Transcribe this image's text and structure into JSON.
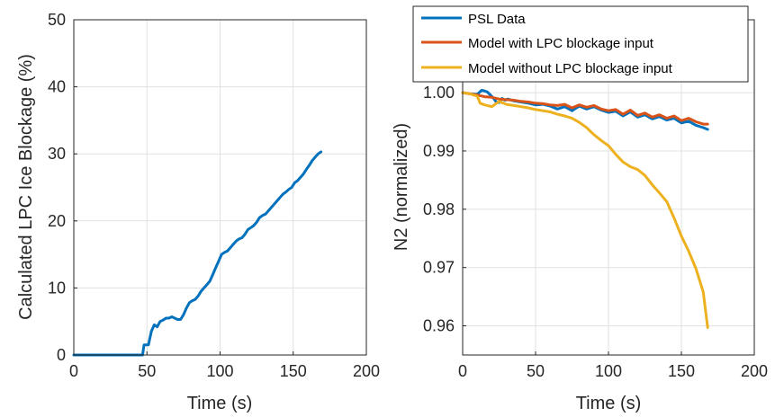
{
  "chart_data": [
    {
      "type": "line",
      "xlabel": "Time (s)",
      "ylabel": "Calculated LPC Ice Blockage (%)",
      "xlim": [
        0,
        200
      ],
      "ylim": [
        0,
        50
      ],
      "xticks": [
        "0",
        "50",
        "100",
        "150",
        "200"
      ],
      "yticks": [
        "0",
        "10",
        "20",
        "30",
        "40",
        "50"
      ],
      "grid": true,
      "series": [
        {
          "color": "#0072BD",
          "x": [
            0,
            10,
            20,
            30,
            40,
            47,
            48,
            50,
            51,
            53,
            55,
            57,
            59,
            61,
            63,
            65,
            67,
            69,
            71,
            73,
            75,
            77,
            79,
            81,
            83,
            85,
            87,
            89,
            91,
            93,
            95,
            97,
            99,
            101,
            103,
            105,
            107,
            109,
            111,
            113,
            115,
            117,
            119,
            121,
            123,
            125,
            127,
            129,
            131,
            133,
            135,
            137,
            139,
            141,
            143,
            145,
            147,
            149,
            151,
            153,
            155,
            157,
            159,
            161,
            163,
            165,
            167,
            169
          ],
          "y": [
            0,
            0,
            0,
            0,
            0,
            0,
            1.5,
            1.5,
            1.5,
            3.5,
            4.5,
            4.2,
            5.0,
            5.2,
            5.5,
            5.5,
            5.7,
            5.5,
            5.3,
            5.3,
            6.0,
            7.0,
            7.8,
            8.1,
            8.3,
            8.8,
            9.5,
            10.0,
            10.5,
            11.0,
            12.0,
            13.0,
            14.0,
            15.0,
            15.3,
            15.5,
            16.0,
            16.5,
            17.0,
            17.3,
            17.5,
            18.0,
            18.7,
            19.0,
            19.3,
            19.8,
            20.5,
            20.8,
            21.0,
            21.5,
            22.0,
            22.5,
            23.0,
            23.5,
            24.0,
            24.3,
            24.7,
            25.0,
            25.7,
            26.0,
            26.5,
            27.0,
            27.7,
            28.3,
            29.0,
            29.5,
            30.0,
            30.3
          ]
        }
      ]
    },
    {
      "type": "line",
      "xlabel": "Time (s)",
      "ylabel": "N2 (normalized)",
      "xlim": [
        0,
        200
      ],
      "ylim": [
        0.955,
        1.0125
      ],
      "xticks": [
        "0",
        "50",
        "100",
        "150",
        "200"
      ],
      "yticks": [
        "0.96",
        "0.97",
        "0.98",
        "0.99",
        "1.00"
      ],
      "grid": true,
      "legend": "top-right",
      "series": [
        {
          "name": "PSL Data",
          "color": "#0072BD",
          "x": [
            0,
            5,
            10,
            13,
            15,
            17,
            19,
            21,
            23,
            25,
            27,
            29,
            31,
            35,
            40,
            45,
            50,
            55,
            60,
            65,
            70,
            75,
            80,
            85,
            90,
            95,
            100,
            105,
            110,
            115,
            120,
            125,
            130,
            135,
            140,
            145,
            150,
            155,
            160,
            165,
            168
          ],
          "y": [
            1.0,
            0.9998,
            0.9997,
            1.0004,
            1.0003,
            1.0001,
            0.9996,
            0.9991,
            0.9984,
            0.9983,
            0.999,
            0.9987,
            0.9989,
            0.9986,
            0.9984,
            0.9982,
            0.9979,
            0.998,
            0.9977,
            0.9972,
            0.9976,
            0.9969,
            0.9977,
            0.9972,
            0.9976,
            0.997,
            0.9966,
            0.9968,
            0.996,
            0.9967,
            0.9958,
            0.9962,
            0.9955,
            0.9959,
            0.9953,
            0.9956,
            0.9948,
            0.9951,
            0.9944,
            0.994,
            0.9937
          ]
        },
        {
          "name": "Model with LPC blockage input",
          "color": "#D95319",
          "x": [
            0,
            5,
            10,
            15,
            20,
            25,
            30,
            35,
            40,
            45,
            50,
            55,
            60,
            65,
            70,
            75,
            80,
            85,
            90,
            95,
            100,
            105,
            110,
            115,
            120,
            125,
            130,
            135,
            140,
            145,
            150,
            155,
            160,
            165,
            168
          ],
          "y": [
            1.0,
            0.9998,
            0.9996,
            0.9993,
            0.9992,
            0.9989,
            0.9988,
            0.9987,
            0.9985,
            0.9984,
            0.9982,
            0.9981,
            0.9979,
            0.9978,
            0.998,
            0.9974,
            0.9979,
            0.9975,
            0.9978,
            0.9972,
            0.9969,
            0.9971,
            0.9963,
            0.997,
            0.9961,
            0.9965,
            0.9958,
            0.9962,
            0.9956,
            0.996,
            0.9952,
            0.9956,
            0.995,
            0.9946,
            0.9946
          ]
        },
        {
          "name": "Model without LPC blockage input",
          "color": "#EDB120",
          "x": [
            0,
            5,
            10,
            12,
            15,
            20,
            25,
            30,
            35,
            40,
            45,
            50,
            55,
            60,
            65,
            70,
            75,
            80,
            85,
            90,
            95,
            100,
            105,
            110,
            115,
            120,
            125,
            130,
            135,
            140,
            145,
            150,
            155,
            160,
            165,
            168
          ],
          "y": [
            1.0,
            0.9998,
            0.9994,
            0.9982,
            0.9979,
            0.9976,
            0.9985,
            0.998,
            0.9978,
            0.9976,
            0.9974,
            0.9971,
            0.9969,
            0.9967,
            0.9963,
            0.996,
            0.9956,
            0.9949,
            0.994,
            0.9928,
            0.9918,
            0.9909,
            0.9894,
            0.9881,
            0.9873,
            0.9868,
            0.9858,
            0.9842,
            0.9828,
            0.9813,
            0.9785,
            0.9754,
            0.9728,
            0.9698,
            0.9658,
            0.9597
          ]
        }
      ]
    }
  ]
}
